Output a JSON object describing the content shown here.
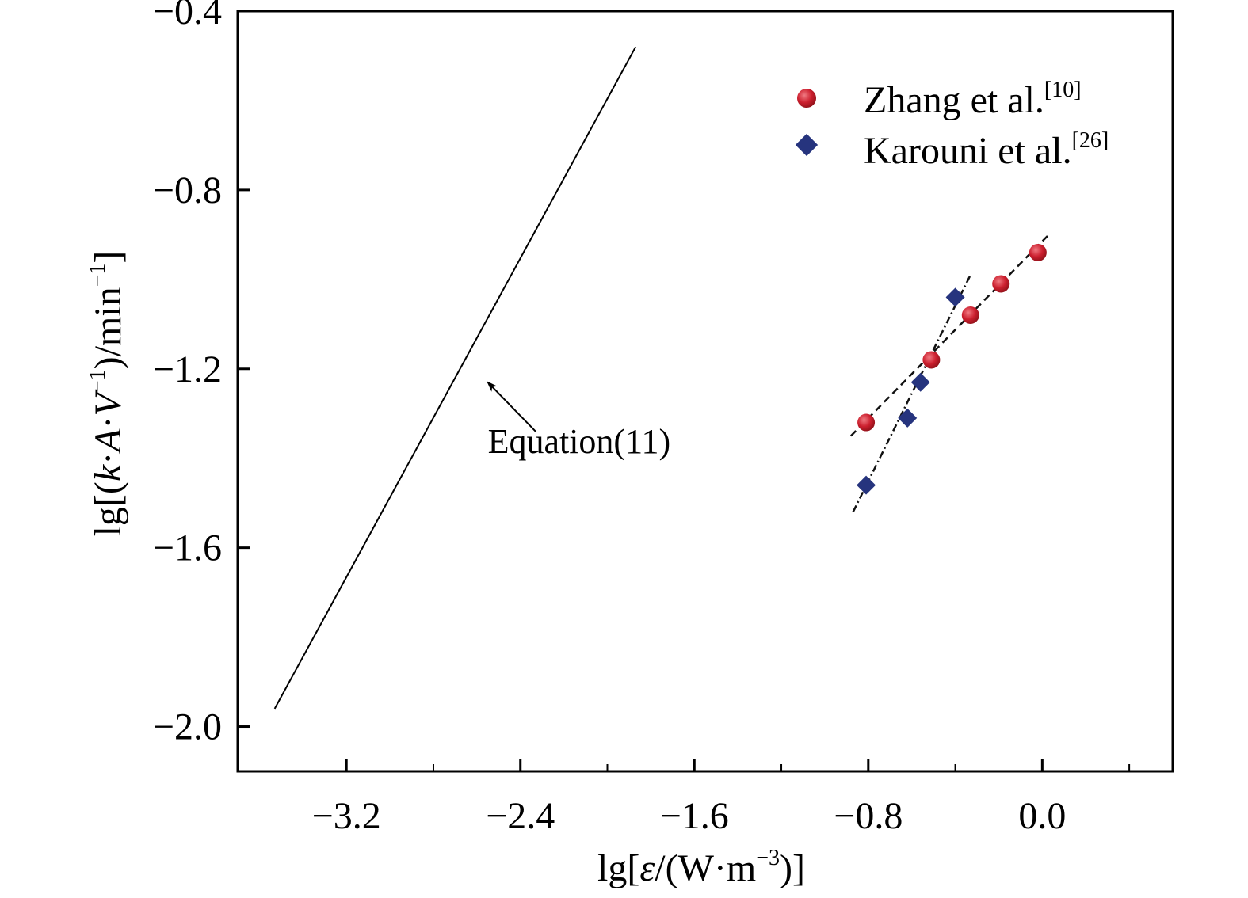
{
  "chart_data": {
    "type": "scatter",
    "title": "",
    "xlabel": {
      "prefix": "lg[",
      "symbol": "ε",
      "middle": "/(W·m",
      "exponent": "−3",
      "suffix": ")]"
    },
    "ylabel": {
      "prefix": "lg[(",
      "k": "k",
      "dot1": "·",
      "A": "A",
      "dot2": "·",
      "V": "V",
      "exponent": "−1",
      "middle": ")/min",
      "exponent2": "−1",
      "suffix": "]"
    },
    "xlim": [
      -3.7,
      0.6
    ],
    "ylim": [
      -2.1,
      -0.4
    ],
    "x_ticks": [
      {
        "value": -3.2,
        "label": "−3.2"
      },
      {
        "value": -2.4,
        "label": "−2.4"
      },
      {
        "value": -1.6,
        "label": "−1.6"
      },
      {
        "value": -0.8,
        "label": "−0.8"
      },
      {
        "value": 0.0,
        "label": "0.0"
      }
    ],
    "x_minor_ticks": [
      -2.8,
      -2.0,
      -1.2,
      -0.4,
      0.4
    ],
    "y_ticks": [
      {
        "value": -0.4,
        "label": "−0.4"
      },
      {
        "value": -0.8,
        "label": "−0.8"
      },
      {
        "value": -1.2,
        "label": "−1.2"
      },
      {
        "value": -1.6,
        "label": "−1.6"
      },
      {
        "value": -2.0,
        "label": "−2.0"
      }
    ],
    "grid": false,
    "legend_position": "top-right",
    "series": [
      {
        "name": "Zhang et al.",
        "ref": "[10]",
        "marker": "circle",
        "color": "#cc1f2e",
        "points": [
          {
            "x": -0.81,
            "y": -1.32
          },
          {
            "x": -0.51,
            "y": -1.18
          },
          {
            "x": -0.33,
            "y": -1.08
          },
          {
            "x": -0.19,
            "y": -1.01
          },
          {
            "x": -0.02,
            "y": -0.94
          }
        ],
        "fit": {
          "style": "dashed",
          "x": [
            -0.88,
            0.03
          ],
          "y": [
            -1.35,
            -0.9
          ]
        }
      },
      {
        "name": "Karouni et al.",
        "ref": "[26]",
        "marker": "diamond",
        "color": "#26347e",
        "points": [
          {
            "x": -0.81,
            "y": -1.46
          },
          {
            "x": -0.62,
            "y": -1.31
          },
          {
            "x": -0.56,
            "y": -1.23
          },
          {
            "x": -0.4,
            "y": -1.04
          }
        ],
        "fit": {
          "style": "dash-dot",
          "x": [
            -0.87,
            -0.33
          ],
          "y": [
            -1.52,
            -0.99
          ]
        }
      }
    ],
    "line": {
      "style": "solid",
      "color": "#000000",
      "x": [
        -3.53,
        -1.87
      ],
      "y": [
        -1.96,
        -0.48
      ]
    },
    "annotations": [
      {
        "text": "Equation(11)",
        "text_at": {
          "x": -2.55,
          "y": -1.36
        },
        "arrow_from": {
          "x": -2.33,
          "y": -1.34
        },
        "arrow_to": {
          "x": -2.55,
          "y": -1.23
        }
      }
    ]
  }
}
